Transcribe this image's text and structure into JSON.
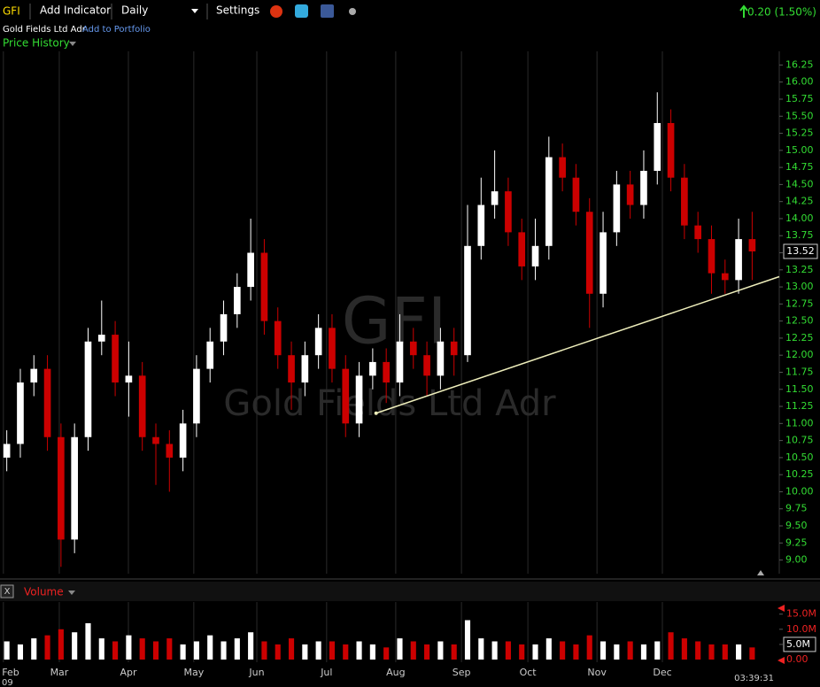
{
  "toolbar": {
    "symbol": "GFI",
    "add_indicator": "Add Indicator",
    "interval": "Daily",
    "settings": "Settings",
    "change": "0.20 (1.50%)",
    "company": "Gold Fields Ltd Adr",
    "add_to_portfolio": "Add to Portfolio",
    "time": "03:39:31",
    "year_label": "09"
  },
  "chart_data": [
    {
      "type": "candlestick",
      "title": "Price History",
      "watermark": "GFI",
      "watermark_sub": "Gold Fields Ltd Adr",
      "x": [
        0,
        4,
        8,
        12,
        16,
        20,
        24,
        28,
        32,
        36,
        40,
        44,
        48,
        52,
        56,
        60,
        64,
        68,
        72,
        76,
        80,
        84,
        88,
        92,
        96,
        100,
        104,
        108,
        112,
        116,
        120,
        124,
        128,
        132,
        136,
        140,
        144,
        148,
        152,
        156,
        160,
        164,
        168,
        172,
        176,
        180,
        184,
        188,
        192,
        196,
        200,
        204,
        208,
        212,
        216,
        220
      ],
      "open": [
        10.5,
        10.7,
        11.6,
        11.8,
        10.8,
        9.3,
        10.8,
        12.2,
        12.3,
        11.6,
        11.7,
        10.8,
        10.7,
        10.5,
        11.0,
        11.8,
        12.2,
        12.6,
        13.0,
        13.5,
        12.5,
        12.0,
        11.6,
        12.0,
        12.4,
        11.8,
        11.0,
        11.7,
        11.9,
        11.6,
        12.2,
        12.0,
        11.7,
        12.2,
        12.0,
        13.6,
        14.2,
        14.4,
        13.8,
        13.3,
        13.6,
        14.9,
        14.6,
        14.1,
        12.9,
        13.8,
        14.5,
        14.2,
        14.7,
        15.4,
        14.6,
        13.9,
        13.7,
        13.2,
        13.1,
        13.7
      ],
      "high": [
        10.9,
        11.8,
        12.0,
        12.0,
        11.0,
        11.0,
        12.4,
        12.8,
        12.5,
        12.2,
        11.9,
        11.0,
        10.9,
        11.2,
        12.0,
        12.4,
        12.8,
        13.2,
        14.0,
        13.7,
        12.7,
        12.2,
        12.2,
        12.6,
        12.6,
        12.0,
        11.9,
        12.1,
        12.1,
        12.6,
        12.4,
        12.2,
        12.4,
        12.4,
        14.2,
        14.6,
        15.0,
        14.6,
        14.0,
        14.0,
        15.2,
        15.1,
        14.8,
        14.3,
        14.1,
        14.7,
        14.7,
        15.0,
        15.85,
        15.6,
        14.8,
        14.1,
        13.9,
        13.4,
        14.0,
        14.1
      ],
      "low": [
        10.3,
        10.5,
        11.4,
        10.6,
        8.9,
        9.1,
        10.6,
        12.0,
        11.4,
        11.1,
        10.6,
        10.1,
        10.0,
        10.3,
        10.8,
        11.6,
        12.0,
        12.4,
        12.8,
        12.3,
        11.8,
        11.2,
        11.4,
        11.8,
        11.6,
        10.8,
        10.8,
        11.5,
        11.3,
        11.4,
        11.8,
        11.4,
        11.5,
        11.7,
        11.9,
        13.4,
        14.0,
        13.6,
        13.1,
        13.1,
        13.4,
        14.4,
        13.9,
        12.4,
        12.7,
        13.6,
        14.0,
        14.0,
        14.5,
        14.4,
        13.7,
        13.5,
        12.9,
        12.9,
        12.9,
        13.1
      ],
      "close": [
        10.7,
        11.6,
        11.8,
        10.8,
        9.3,
        10.8,
        12.2,
        12.3,
        11.6,
        11.7,
        10.8,
        10.7,
        10.5,
        11.0,
        11.8,
        12.2,
        12.6,
        13.0,
        13.5,
        12.5,
        12.0,
        11.6,
        12.0,
        12.4,
        11.8,
        11.0,
        11.7,
        11.9,
        11.6,
        12.2,
        12.0,
        11.7,
        12.2,
        12.0,
        13.6,
        14.2,
        14.4,
        13.8,
        13.3,
        13.6,
        14.9,
        14.6,
        14.1,
        12.9,
        13.8,
        14.5,
        14.2,
        14.7,
        15.4,
        14.6,
        13.9,
        13.7,
        13.2,
        13.1,
        13.7,
        13.52
      ],
      "last_price": 13.52,
      "up_color": "#ffffff",
      "down_color": "#cc0000",
      "xlim": [
        -2,
        228
      ],
      "xticks": [
        {
          "value": -1,
          "label": "Feb"
        },
        {
          "value": 15.5,
          "label": "Mar"
        },
        {
          "value": 35.9,
          "label": "Apr"
        },
        {
          "value": 55.2,
          "label": "May"
        },
        {
          "value": 73.8,
          "label": "Jun"
        },
        {
          "value": 94.4,
          "label": "Jul"
        },
        {
          "value": 114.8,
          "label": "Aug"
        },
        {
          "value": 134.2,
          "label": "Sep"
        },
        {
          "value": 153.8,
          "label": "Oct"
        },
        {
          "value": 174.2,
          "label": "Nov"
        },
        {
          "value": 193.5,
          "label": "Dec"
        }
      ],
      "ylim": [
        8.8,
        16.45
      ],
      "yticks": [
        {
          "value": 9,
          "label": "9.00"
        },
        {
          "value": 9.25,
          "label": "9.25"
        },
        {
          "value": 9.5,
          "label": "9.50"
        },
        {
          "value": 9.75,
          "label": "9.75"
        },
        {
          "value": 10,
          "label": "10.00"
        },
        {
          "value": 10.25,
          "label": "10.25"
        },
        {
          "value": 10.5,
          "label": "10.50"
        },
        {
          "value": 10.75,
          "label": "10.75"
        },
        {
          "value": 11,
          "label": "11.00"
        },
        {
          "value": 11.25,
          "label": "11.25"
        },
        {
          "value": 11.5,
          "label": "11.50"
        },
        {
          "value": 11.75,
          "label": "11.75"
        },
        {
          "value": 12,
          "label": "12.00"
        },
        {
          "value": 12.25,
          "label": "12.25"
        },
        {
          "value": 12.5,
          "label": "12.50"
        },
        {
          "value": 12.75,
          "label": "12.75"
        },
        {
          "value": 13,
          "label": "13.00"
        },
        {
          "value": 13.25,
          "label": "13.25"
        },
        {
          "value": 13.5,
          "label": "13.50"
        },
        {
          "value": 13.75,
          "label": "13.75"
        },
        {
          "value": 14,
          "label": "14.00"
        },
        {
          "value": 14.25,
          "label": "14.25"
        },
        {
          "value": 14.5,
          "label": "14.50"
        },
        {
          "value": 14.75,
          "label": "14.75"
        },
        {
          "value": 15,
          "label": "15.00"
        },
        {
          "value": 15.25,
          "label": "15.25"
        },
        {
          "value": 15.5,
          "label": "15.50"
        },
        {
          "value": 15.75,
          "label": "15.75"
        },
        {
          "value": 16,
          "label": "16.00"
        },
        {
          "value": 16.25,
          "label": "16.25"
        }
      ],
      "grid": "x",
      "tick_color": "#33dd33",
      "trendline": {
        "x": [
          109,
          228
        ],
        "y": [
          11.15,
          13.15
        ],
        "color": "#eeeebb"
      }
    },
    {
      "type": "volume",
      "title": "Volume",
      "values": [
        6000000,
        5000000,
        7000000,
        8000000,
        10000000,
        9000000,
        12000000,
        7000000,
        6000000,
        8000000,
        7000000,
        6000000,
        7000000,
        5000000,
        6000000,
        8000000,
        6000000,
        7000000,
        9000000,
        6000000,
        5000000,
        7000000,
        5000000,
        6000000,
        6000000,
        5000000,
        6000000,
        5000000,
        4000000,
        7000000,
        6000000,
        5000000,
        6000000,
        5000000,
        13000000,
        7000000,
        6000000,
        6000000,
        5000000,
        5000000,
        7000000,
        6000000,
        5000000,
        8000000,
        6000000,
        5000000,
        6000000,
        5000000,
        6000000,
        9000000,
        7000000,
        6000000,
        5000000,
        5000000,
        5000000,
        4000000
      ],
      "ylim": [
        0,
        19000000
      ],
      "yticks": [
        {
          "value": 0,
          "label": "0.00"
        },
        {
          "value": 5000000,
          "label": "5.0M"
        },
        {
          "value": 10000000,
          "label": "10.0M"
        },
        {
          "value": 15000000,
          "label": "15.0M"
        }
      ],
      "tick_color": "#ee2222"
    }
  ]
}
